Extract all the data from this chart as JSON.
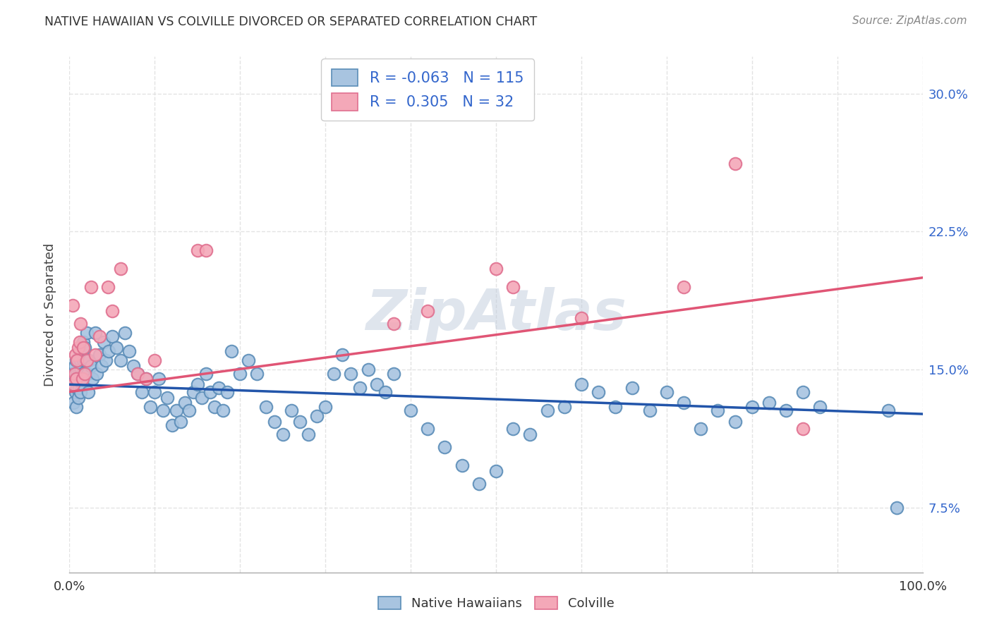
{
  "title": "NATIVE HAWAIIAN VS COLVILLE DIVORCED OR SEPARATED CORRELATION CHART",
  "source": "Source: ZipAtlas.com",
  "ylabel": "Divorced or Separated",
  "legend_label1": "Native Hawaiians",
  "legend_label2": "Colville",
  "R1": "-0.063",
  "N1": "115",
  "R2": "0.305",
  "N2": "32",
  "blue_color": "#A8C4E0",
  "pink_color": "#F4A8B8",
  "blue_edge_color": "#5B8DB8",
  "pink_edge_color": "#E07090",
  "blue_line_color": "#2255AA",
  "pink_line_color": "#E05575",
  "title_color": "#333333",
  "watermark_color": "#C0CCDD",
  "background_color": "#FFFFFF",
  "grid_color": "#DDDDDD",
  "label_color": "#3366CC",
  "x_min": 0.0,
  "x_max": 1.0,
  "y_min": 0.04,
  "y_max": 0.32,
  "y_ticks": [
    0.075,
    0.15,
    0.225,
    0.3
  ],
  "y_tick_labels": [
    "7.5%",
    "15.0%",
    "22.5%",
    "30.0%"
  ],
  "x_ticks": [
    0.0,
    0.1,
    0.2,
    0.3,
    0.4,
    0.5,
    0.6,
    0.7,
    0.8,
    0.9,
    1.0
  ],
  "x_tick_labels": [
    "0.0%",
    "",
    "",
    "",
    "",
    "",
    "",
    "",
    "",
    "",
    "100.0%"
  ],
  "blue_trend_x": [
    0.0,
    1.0
  ],
  "blue_trend_y": [
    0.142,
    0.126
  ],
  "pink_trend_x": [
    0.0,
    1.0
  ],
  "pink_trend_y": [
    0.138,
    0.2
  ],
  "blue_scatter_x": [
    0.004,
    0.005,
    0.005,
    0.006,
    0.006,
    0.007,
    0.007,
    0.008,
    0.008,
    0.009,
    0.009,
    0.01,
    0.01,
    0.011,
    0.011,
    0.012,
    0.012,
    0.013,
    0.013,
    0.014,
    0.015,
    0.015,
    0.016,
    0.016,
    0.017,
    0.018,
    0.019,
    0.02,
    0.021,
    0.022,
    0.023,
    0.025,
    0.027,
    0.03,
    0.032,
    0.035,
    0.038,
    0.04,
    0.043,
    0.046,
    0.05,
    0.055,
    0.06,
    0.065,
    0.07,
    0.075,
    0.08,
    0.085,
    0.09,
    0.095,
    0.1,
    0.105,
    0.11,
    0.115,
    0.12,
    0.125,
    0.13,
    0.135,
    0.14,
    0.145,
    0.15,
    0.155,
    0.16,
    0.165,
    0.17,
    0.175,
    0.18,
    0.185,
    0.19,
    0.2,
    0.21,
    0.22,
    0.23,
    0.24,
    0.25,
    0.26,
    0.27,
    0.28,
    0.29,
    0.3,
    0.31,
    0.32,
    0.33,
    0.34,
    0.35,
    0.36,
    0.37,
    0.38,
    0.4,
    0.42,
    0.44,
    0.46,
    0.48,
    0.5,
    0.52,
    0.54,
    0.56,
    0.58,
    0.6,
    0.62,
    0.64,
    0.66,
    0.68,
    0.7,
    0.72,
    0.74,
    0.76,
    0.78,
    0.8,
    0.82,
    0.84,
    0.86,
    0.88,
    0.96,
    0.97
  ],
  "blue_scatter_y": [
    0.148,
    0.14,
    0.132,
    0.145,
    0.152,
    0.138,
    0.145,
    0.13,
    0.155,
    0.14,
    0.148,
    0.135,
    0.155,
    0.148,
    0.14,
    0.16,
    0.145,
    0.138,
    0.155,
    0.15,
    0.142,
    0.148,
    0.165,
    0.155,
    0.148,
    0.162,
    0.155,
    0.17,
    0.148,
    0.138,
    0.155,
    0.152,
    0.145,
    0.17,
    0.148,
    0.158,
    0.152,
    0.165,
    0.155,
    0.16,
    0.168,
    0.162,
    0.155,
    0.17,
    0.16,
    0.152,
    0.148,
    0.138,
    0.145,
    0.13,
    0.138,
    0.145,
    0.128,
    0.135,
    0.12,
    0.128,
    0.122,
    0.132,
    0.128,
    0.138,
    0.142,
    0.135,
    0.148,
    0.138,
    0.13,
    0.14,
    0.128,
    0.138,
    0.16,
    0.148,
    0.155,
    0.148,
    0.13,
    0.122,
    0.115,
    0.128,
    0.122,
    0.115,
    0.125,
    0.13,
    0.148,
    0.158,
    0.148,
    0.14,
    0.15,
    0.142,
    0.138,
    0.148,
    0.128,
    0.118,
    0.108,
    0.098,
    0.088,
    0.095,
    0.118,
    0.115,
    0.128,
    0.13,
    0.142,
    0.138,
    0.13,
    0.14,
    0.128,
    0.138,
    0.132,
    0.118,
    0.128,
    0.122,
    0.13,
    0.132,
    0.128,
    0.138,
    0.13,
    0.128,
    0.075
  ],
  "pink_scatter_x": [
    0.004,
    0.005,
    0.006,
    0.007,
    0.008,
    0.009,
    0.01,
    0.012,
    0.013,
    0.015,
    0.016,
    0.018,
    0.02,
    0.025,
    0.03,
    0.035,
    0.045,
    0.05,
    0.06,
    0.08,
    0.09,
    0.1,
    0.15,
    0.16,
    0.38,
    0.42,
    0.5,
    0.52,
    0.6,
    0.72,
    0.78,
    0.86
  ],
  "pink_scatter_y": [
    0.185,
    0.142,
    0.148,
    0.158,
    0.145,
    0.155,
    0.162,
    0.165,
    0.175,
    0.145,
    0.162,
    0.148,
    0.155,
    0.195,
    0.158,
    0.168,
    0.195,
    0.182,
    0.205,
    0.148,
    0.145,
    0.155,
    0.215,
    0.215,
    0.175,
    0.182,
    0.205,
    0.195,
    0.178,
    0.195,
    0.262,
    0.118
  ]
}
